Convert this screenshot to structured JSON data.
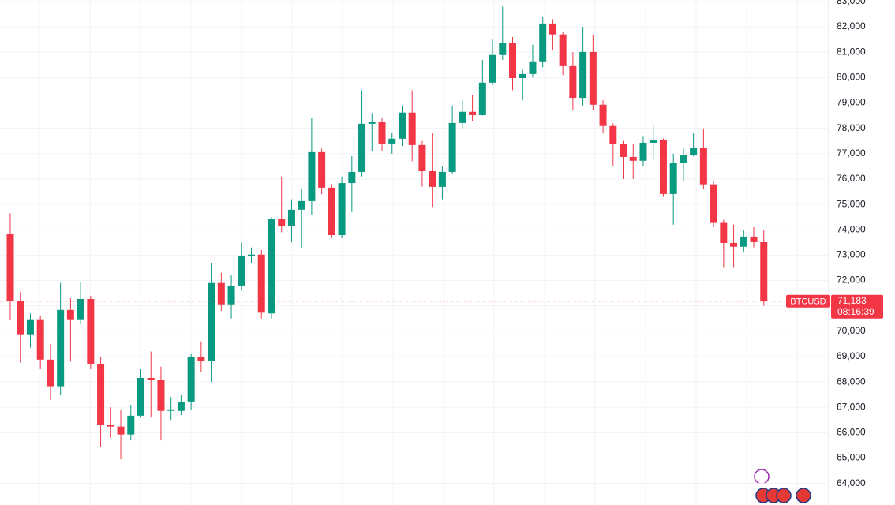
{
  "chart_data": {
    "type": "candlestick",
    "symbol": "BTCUSD",
    "last_price": {
      "value": 71183,
      "label": "71,183"
    },
    "countdown": "08:16:39",
    "up_color": "#089981",
    "down_color": "#f23645",
    "ylim": [
      63150,
      83060
    ],
    "yticks": [
      {
        "value": 64000,
        "label": "64,000"
      },
      {
        "value": 65000,
        "label": "65,000"
      },
      {
        "value": 66000,
        "label": "66,000"
      },
      {
        "value": 67000,
        "label": "67,000"
      },
      {
        "value": 68000,
        "label": "68,000"
      },
      {
        "value": 69000,
        "label": "69,000"
      },
      {
        "value": 70000,
        "label": "70,000"
      },
      {
        "value": 71000,
        "label": "71,000"
      },
      {
        "value": 72000,
        "label": "72,000"
      },
      {
        "value": 73000,
        "label": "73,000"
      },
      {
        "value": 74000,
        "label": "74,000"
      },
      {
        "value": 75000,
        "label": "75,000"
      },
      {
        "value": 76000,
        "label": "76,000"
      },
      {
        "value": 77000,
        "label": "77,000"
      },
      {
        "value": 78000,
        "label": "78,000"
      },
      {
        "value": 79000,
        "label": "79,000"
      },
      {
        "value": 80000,
        "label": "80,000"
      },
      {
        "value": 81000,
        "label": "81,000"
      },
      {
        "value": 82000,
        "label": "82,000"
      },
      {
        "value": 83000,
        "label": "83,000"
      }
    ],
    "grid": true,
    "open": [
      73850,
      71200,
      69880,
      70470,
      68880,
      67830,
      70840,
      70470,
      71270,
      68720,
      66300,
      66240,
      65930,
      66670,
      68160,
      68070,
      66860,
      66860,
      67230,
      68970,
      68820,
      71900,
      71060,
      71800,
      72950,
      73020,
      70700,
      74410,
      74140,
      74790,
      75130,
      77060,
      75660,
      73790,
      75840,
      76280,
      78180,
      78240,
      77400,
      77590,
      78620,
      77340,
      76310,
      75690,
      76280,
      78210,
      78650,
      78520,
      79800,
      80890,
      81380,
      79980,
      80140,
      80640,
      82130,
      81700,
      80450,
      79200,
      81010,
      78930,
      78090,
      77370,
      76870,
      76720,
      77430,
      77530,
      75410,
      76620,
      76940,
      77220,
      75790,
      74300,
      73480,
      73330,
      73730,
      73510
    ],
    "high": [
      74650,
      71550,
      70700,
      70600,
      69500,
      71900,
      71300,
      71950,
      71400,
      69000,
      67000,
      66900,
      67100,
      68500,
      69200,
      68600,
      67400,
      67500,
      69100,
      69600,
      72700,
      72300,
      72200,
      73500,
      73300,
      73200,
      74500,
      76100,
      75200,
      75600,
      78400,
      77200,
      75800,
      76100,
      76900,
      79500,
      78600,
      78400,
      77800,
      78900,
      79500,
      77500,
      77800,
      76500,
      78900,
      79100,
      79300,
      80700,
      81500,
      82800,
      81600,
      80300,
      81300,
      82400,
      82300,
      81800,
      81000,
      82000,
      81700,
      79100,
      78200,
      77500,
      77400,
      77700,
      78100,
      77600,
      77000,
      77200,
      77800,
      78000,
      75900,
      74400,
      74200,
      74000,
      74100,
      74000
    ],
    "low": [
      70450,
      68760,
      69350,
      68500,
      67300,
      67500,
      68800,
      70300,
      68500,
      65450,
      65800,
      64950,
      65700,
      66600,
      66600,
      65700,
      66500,
      66700,
      66900,
      68400,
      68000,
      70800,
      70500,
      71600,
      72700,
      70500,
      70500,
      73900,
      73500,
      73300,
      74600,
      75400,
      73700,
      73700,
      74700,
      76100,
      77100,
      77100,
      77000,
      77300,
      76700,
      75700,
      74900,
      75200,
      76200,
      78000,
      78300,
      78500,
      79700,
      80700,
      79500,
      79100,
      80000,
      80400,
      81100,
      80100,
      78700,
      78900,
      78700,
      77800,
      76500,
      76000,
      76000,
      76500,
      76800,
      75300,
      74200,
      75900,
      76900,
      75600,
      74100,
      72500,
      72500,
      73100,
      73300,
      71000
    ],
    "close": [
      71200,
      69880,
      70470,
      68880,
      67830,
      70840,
      70470,
      71270,
      68720,
      66300,
      66240,
      65930,
      66670,
      68160,
      68070,
      66860,
      66920,
      67200,
      68970,
      68820,
      71900,
      71060,
      71800,
      72950,
      73020,
      70730,
      74410,
      74140,
      74790,
      75130,
      77060,
      75660,
      73790,
      75840,
      76280,
      78180,
      78240,
      77400,
      77590,
      78620,
      77340,
      76310,
      75690,
      76280,
      78210,
      78650,
      78520,
      79800,
      80890,
      81380,
      79980,
      80140,
      80640,
      82130,
      81700,
      80450,
      79200,
      81010,
      78930,
      78090,
      77370,
      76870,
      76720,
      77430,
      77530,
      75410,
      76620,
      76940,
      77220,
      75790,
      74300,
      73480,
      73330,
      73730,
      73510,
      71183
    ]
  }
}
